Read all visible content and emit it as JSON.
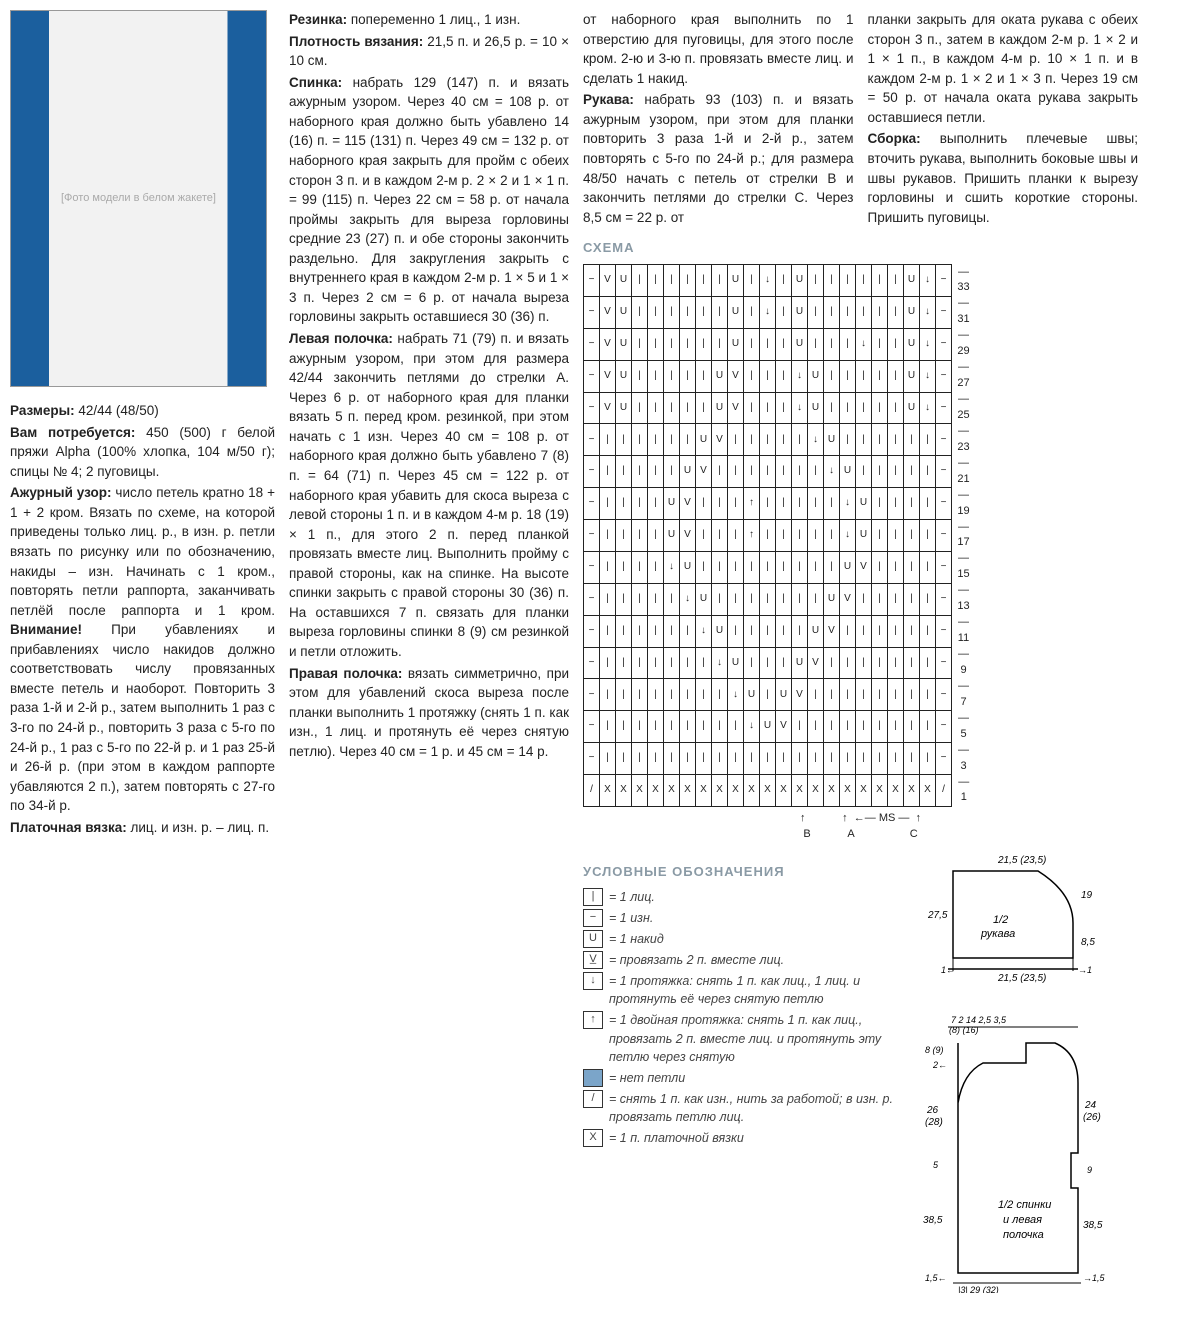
{
  "photo_placeholder": "[Фото модели в белом жакете]",
  "col1": {
    "sizes_label": "Размеры:",
    "sizes_value": " 42/44 (48/50)",
    "need_label": "Вам потребуется:",
    "need_value": " 450 (500) г белой пряжи Alpha (100% хлопка, 104 м/50 г); спицы № 4; 2 пуговицы.",
    "pattern_label": "Ажурный узор:",
    "pattern_text": " число петель кратно 18 + 1 + 2 кром. Вязать по схеме, на которой приведены только лиц. р., в изн. р. петли вязать по рисунку или по обозначению, накиды – изн. Начинать с 1 кром., повторять петли раппорта, заканчивать петлёй после раппорта и 1 кром. ",
    "attention_label": "Внимание!",
    "attention_text": " При убавлениях и прибавлениях число накидов должно соответствовать числу провязанных вместе петель и наоборот. Повторить 3 раза 1-й и 2-й р., затем выполнить 1 раз с 3-го по 24-й р., повторить 3 раза с 5-го по 24-й р., 1 раз с 5-го по 22-й р. и 1 раз 25-й и 26-й р. (при этом в каждом раппорте убавляются 2 п.), затем повторять с 27-го по 34-й р.",
    "garter_label": "Платочная вязка:",
    "garter_text": " лиц. и изн. р. – лиц. п."
  },
  "col2": {
    "rib_label": "Резинка:",
    "rib_text": " попеременно 1 лиц., 1 изн.",
    "density_label": "Плотность вязания:",
    "density_text": " 21,5 п. и 26,5 р. = 10 × 10 см.",
    "back_label": "Спинка:",
    "back_text": " набрать 129 (147) п. и вязать ажурным узором. Через 40 см = 108 р. от наборного края должно быть убавлено 14 (16) п. = 115 (131) п. Через 49 см = 132 р. от наборного края закрыть для пройм с обеих сторон 3 п. и в каждом 2-м р. 2 × 2 и 1 × 1 п. = 99 (115) п. Через 22 см = 58 р. от начала проймы закрыть для выреза горловины средние 23 (27) п. и обе стороны закончить раздельно. Для закругления закрыть с внутреннего края в каждом 2-м р. 1 × 5 и 1 × 3 п. Через 2 см = 6 р. от начала выреза горловины закрыть оставшиеся 30 (36) п.",
    "left_label": "Левая полочка:",
    "left_text": " набрать 71 (79) п. и вязать ажурным узором, при этом для размера 42/44 закончить петлями до стрелки А. Через 6 р. от наборного края для планки вязать 5 п. перед кром. резинкой, при этом начать с 1 изн. Через 40 см = 108 р. от наборного края должно быть убавлено 7 (8) п. = 64 (71) п. Через 45 см = 122 р. от наборного края убавить для скоса выреза с левой стороны 1 п. и в каждом 4-м р. 18 (19) × 1 п., для этого 2 п. перед планкой провязать вместе лиц. Выполнить пройму с правой стороны, как на спинке. На высоте спинки закрыть с правой стороны 30 (36) п. На оставшихся 7 п. связать для планки выреза горловины спинки 8 (9) см резинкой и петли отложить.",
    "right_label": "Правая полочка:",
    "right_text": " вязать симметрично, при этом для убавлений скоса выреза после планки выполнить 1 протяжку (снять 1 п. как изн., 1 лиц. и протянуть её через снятую петлю). Через 40 см = 1 р. и 45 см = 14 р."
  },
  "col3": {
    "right_cont": "от наборного края выполнить по 1 отверстию для пуговицы, для этого после кром. 2-ю и 3-ю п. провязать вместе лиц. и сделать 1 накид.",
    "sleeves_label": "Рукава:",
    "sleeves_text": " набрать 93 (103) п. и вязать ажурным узором, при этом для планки повторить 3 раза 1-й и 2-й р., затем повторять с 5-го по 24-й р.; для размера 48/50 начать с петель от стрелки В и закончить петлями до стрелки С. Через 8,5 см = 22 р. от"
  },
  "col4": {
    "sleeves_cont": "планки закрыть для оката рукава с обеих сторон 3 п., затем в каждом 2-м р. 1 × 2 и 1 × 1 п., в каждом 4-м р. 10 × 1 п. и в каждом 2-м р. 1 × 2 и 1 × 3 п. Через 19 см = 50 р. от начала оката рукава закрыть оставшиеся петли.",
    "assembly_label": "Сборка:",
    "assembly_text": " выполнить плечевые швы; вточить рукава, выполнить боковые швы и швы рукавов. Пришить планки к вырезу горловины и сшить короткие стороны. Пришить пуговицы."
  },
  "schema_title": "СХЕМА",
  "legend_title": "УСЛОВНЫЕ ОБОЗНАЧЕНИЯ",
  "legend": [
    {
      "sym": "|",
      "text": "= 1 лиц."
    },
    {
      "sym": "−",
      "text": "= 1 изн."
    },
    {
      "sym": "U",
      "text": "= 1 накид"
    },
    {
      "sym": "V̲",
      "text": "= провязать 2 п. вместе лиц."
    },
    {
      "sym": "↓",
      "text": "= 1 протяжка: снять 1 п. как лиц., 1 лиц. и протянуть её через снятую петлю"
    },
    {
      "sym": "↑",
      "text": "= 1 двойная протяжка: снять 1 п. как лиц., провязать 2 п. вместе лиц. и протянуть эту петлю через снятую"
    },
    {
      "sym": "",
      "text": "= нет петли",
      "filled": true
    },
    {
      "sym": "/",
      "text": "= снять 1 п. как изн., нить за работой; в изн. р. провязать петлю лиц."
    },
    {
      "sym": "X",
      "text": "= 1 п. платочной вязки"
    }
  ],
  "chart": {
    "row_numbers": [
      33,
      31,
      29,
      27,
      25,
      23,
      21,
      19,
      17,
      15,
      13,
      11,
      9,
      7,
      5,
      3,
      1
    ],
    "markers": [
      "B",
      "A",
      "MS",
      "C"
    ],
    "rows": [
      [
        "−",
        "V",
        "U",
        "|",
        "|",
        "|",
        "|",
        "|",
        "|",
        "U",
        "|",
        "↓",
        "|",
        "U",
        "|",
        "|",
        "|",
        "|",
        "|",
        "|",
        "U",
        "↓",
        "−"
      ],
      [
        "−",
        "V",
        "U",
        "|",
        "|",
        "|",
        "|",
        "|",
        "|",
        "U",
        "|",
        "↓",
        "|",
        "U",
        "|",
        "|",
        "|",
        "|",
        "|",
        "|",
        "U",
        "↓",
        "−"
      ],
      [
        "−",
        "V",
        "U",
        "|",
        "|",
        "|",
        "|",
        "|",
        "|",
        "U",
        "|",
        "|",
        "|",
        "U",
        "|",
        "|",
        "|",
        "↓",
        "|",
        "|",
        "U",
        "↓",
        "−"
      ],
      [
        "−",
        "V",
        "U",
        "|",
        "|",
        "|",
        "|",
        "|",
        "U",
        "V",
        "|",
        "|",
        "|",
        "↓",
        "U",
        "|",
        "|",
        "|",
        "|",
        "|",
        "U",
        "↓",
        "−"
      ],
      [
        "−",
        "V",
        "U",
        "|",
        "|",
        "|",
        "|",
        "|",
        "U",
        "V",
        "|",
        "|",
        "|",
        "↓",
        "U",
        "|",
        "|",
        "|",
        "|",
        "|",
        "U",
        "↓",
        "−"
      ],
      [
        "−",
        "|",
        "|",
        "|",
        "|",
        "|",
        "|",
        "U",
        "V",
        "|",
        "|",
        "|",
        "|",
        "|",
        "↓",
        "U",
        "|",
        "|",
        "|",
        "|",
        "|",
        "|",
        "−"
      ],
      [
        "−",
        "|",
        "|",
        "|",
        "|",
        "|",
        "U",
        "V",
        "|",
        "|",
        "|",
        "|",
        "|",
        "|",
        "|",
        "↓",
        "U",
        "|",
        "|",
        "|",
        "|",
        "|",
        "−"
      ],
      [
        "−",
        "|",
        "|",
        "|",
        "|",
        "U",
        "V",
        "|",
        "|",
        "|",
        "↑",
        "|",
        "|",
        "|",
        "|",
        "|",
        "↓",
        "U",
        "|",
        "|",
        "|",
        "|",
        "−"
      ],
      [
        "−",
        "|",
        "|",
        "|",
        "|",
        "U",
        "V",
        "|",
        "|",
        "|",
        "↑",
        "|",
        "|",
        "|",
        "|",
        "|",
        "↓",
        "U",
        "|",
        "|",
        "|",
        "|",
        "−"
      ],
      [
        "−",
        "|",
        "|",
        "|",
        "|",
        "↓",
        "U",
        "|",
        "|",
        "|",
        "|",
        "|",
        "|",
        "|",
        "|",
        "|",
        "U",
        "V",
        "|",
        "|",
        "|",
        "|",
        "−"
      ],
      [
        "−",
        "|",
        "|",
        "|",
        "|",
        "|",
        "↓",
        "U",
        "|",
        "|",
        "|",
        "|",
        "|",
        "|",
        "|",
        "U",
        "V",
        "|",
        "|",
        "|",
        "|",
        "|",
        "−"
      ],
      [
        "−",
        "|",
        "|",
        "|",
        "|",
        "|",
        "|",
        "↓",
        "U",
        "|",
        "|",
        "|",
        "|",
        "|",
        "U",
        "V",
        "|",
        "|",
        "|",
        "|",
        "|",
        "|",
        "−"
      ],
      [
        "−",
        "|",
        "|",
        "|",
        "|",
        "|",
        "|",
        "|",
        "↓",
        "U",
        "|",
        "|",
        "|",
        "U",
        "V",
        "|",
        "|",
        "|",
        "|",
        "|",
        "|",
        "|",
        "−"
      ],
      [
        "−",
        "|",
        "|",
        "|",
        "|",
        "|",
        "|",
        "|",
        "|",
        "↓",
        "U",
        "|",
        "U",
        "V",
        "|",
        "|",
        "|",
        "|",
        "|",
        "|",
        "|",
        "|",
        "−"
      ],
      [
        "−",
        "|",
        "|",
        "|",
        "|",
        "|",
        "|",
        "|",
        "|",
        "|",
        "↓",
        "U",
        "V",
        "|",
        "|",
        "|",
        "|",
        "|",
        "|",
        "|",
        "|",
        "|",
        "−"
      ],
      [
        "−",
        "|",
        "|",
        "|",
        "|",
        "|",
        "|",
        "|",
        "|",
        "|",
        "|",
        "|",
        "|",
        "|",
        "|",
        "|",
        "|",
        "|",
        "|",
        "|",
        "|",
        "|",
        "−"
      ],
      [
        "/",
        "X",
        "X",
        "X",
        "X",
        "X",
        "X",
        "X",
        "X",
        "X",
        "X",
        "X",
        "X",
        "X",
        "X",
        "X",
        "X",
        "X",
        "X",
        "X",
        "X",
        "X",
        "/"
      ]
    ]
  },
  "sleeve": {
    "label": "1/2 рукава",
    "w_top": "21,5\n(23,5)",
    "h_right1": "19",
    "h_right2": "8,5",
    "h_left": "27,5",
    "w_bottom": "21,5\n(23,5)",
    "one_l": "1",
    "one_r": "1"
  },
  "body": {
    "label": "1/2 спинки и левая полочка",
    "top_vals": "|7| 2 | 14 |2,5|3,5|\n (8)   (16)",
    "left_vals": [
      "8 (9)",
      "2",
      "26\n(28)",
      "5",
      "38,5",
      "1,5"
    ],
    "right_vals": [
      "24\n(26)",
      "9",
      "38,5",
      "1,5"
    ],
    "bottom": "|3|   29 (32)   |"
  }
}
